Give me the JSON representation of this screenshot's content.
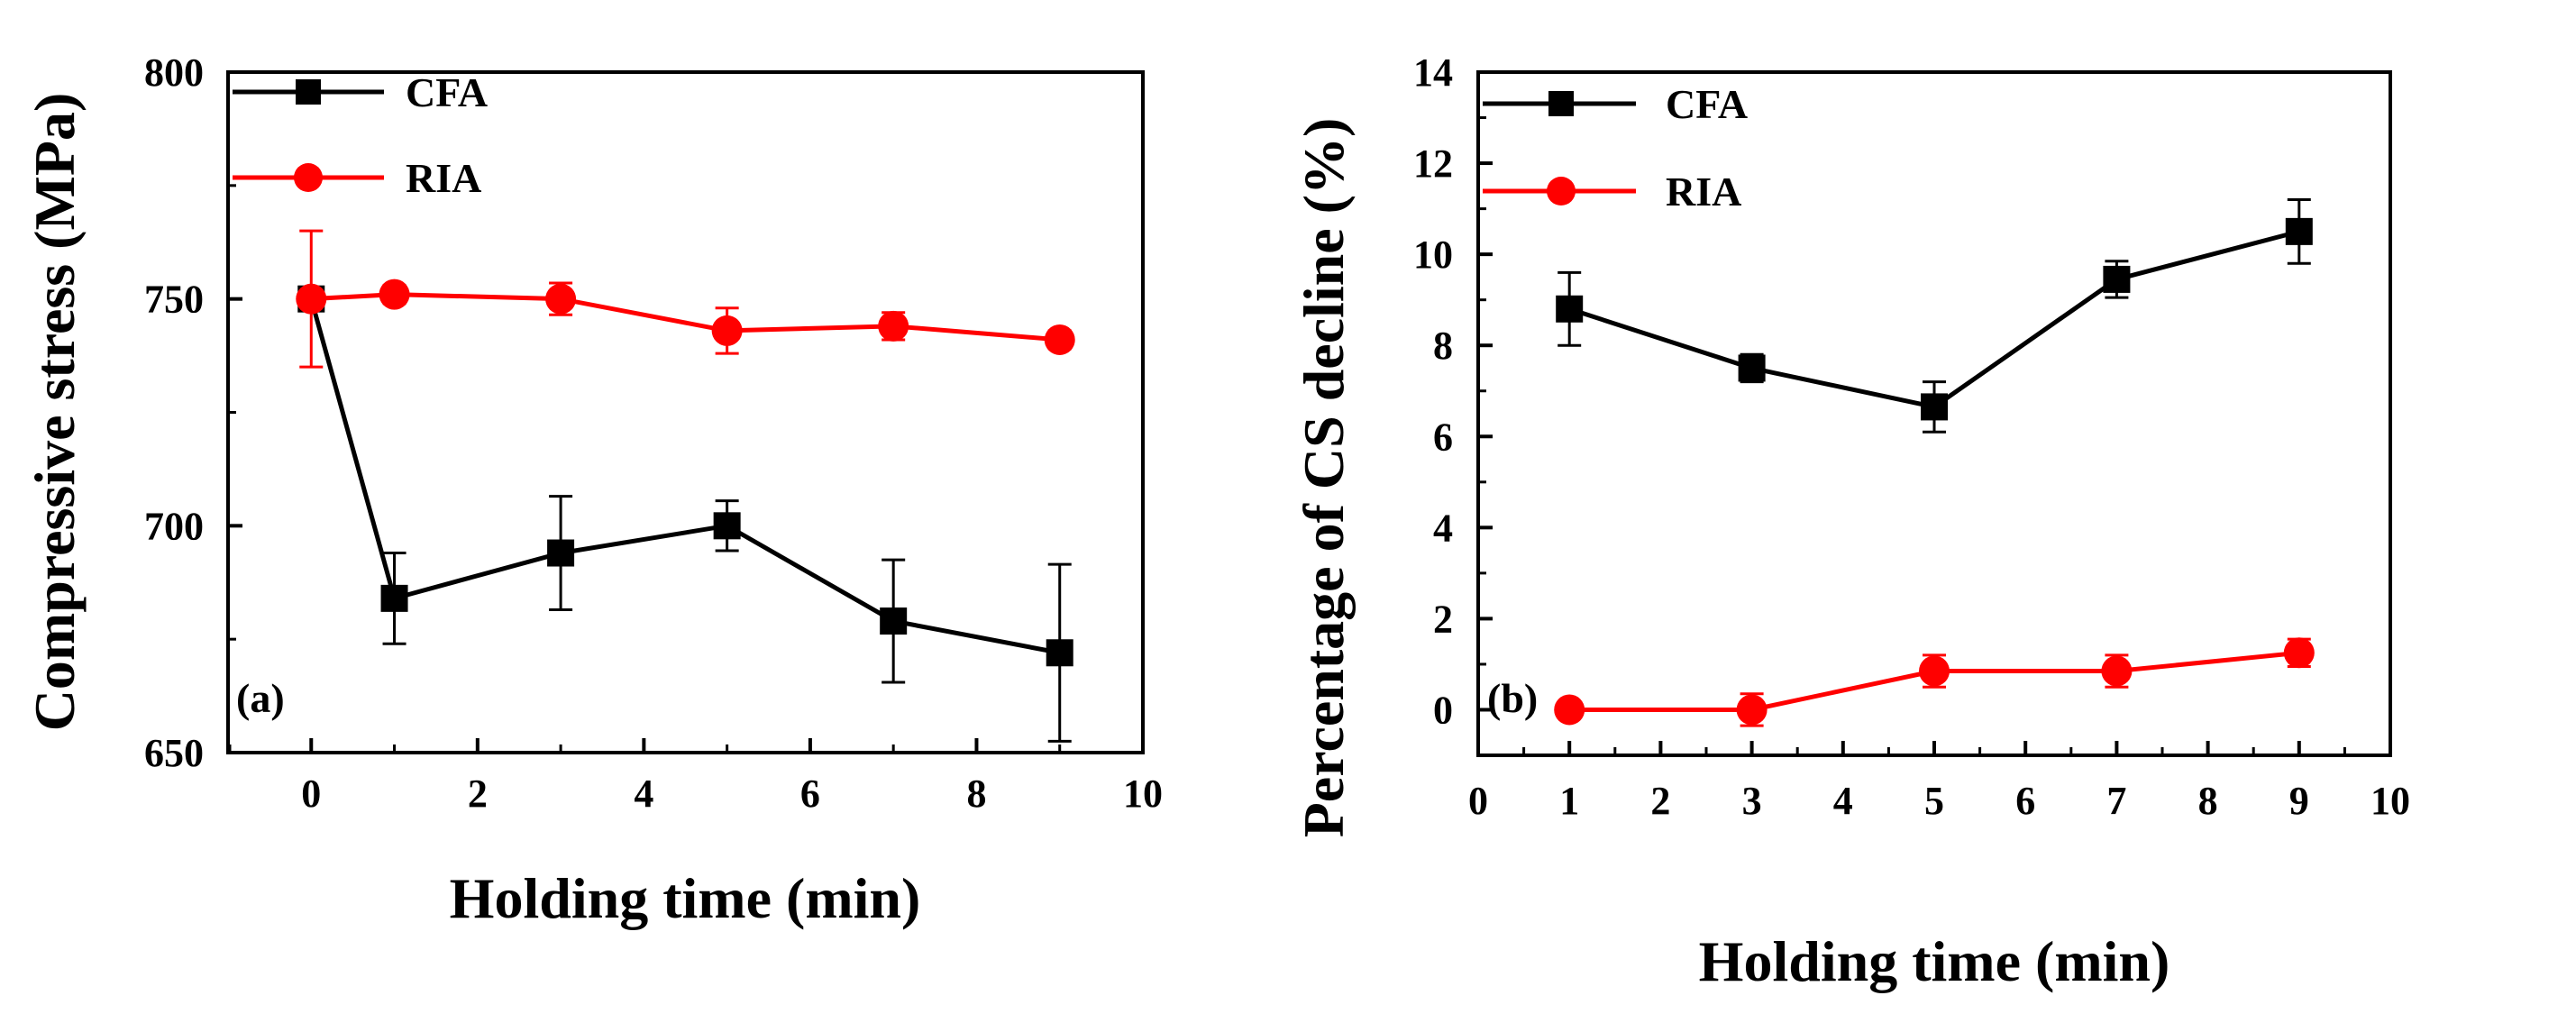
{
  "chart_data": [
    {
      "type": "line",
      "panel_label": "(a)",
      "xlabel": "Holding time (min)",
      "ylabel": "Compressive stress (MPa)",
      "xlim": [
        -1,
        10
      ],
      "ylim": [
        650,
        800
      ],
      "xticks": [
        0,
        2,
        4,
        6,
        8,
        10
      ],
      "xtick_labels": [
        "0",
        "2",
        "4",
        "6",
        "8",
        "10"
      ],
      "yticks": [
        650,
        700,
        750,
        800
      ],
      "ytick_labels": [
        "650",
        "700",
        "750",
        "800"
      ],
      "legend_position": "top-left",
      "series": [
        {
          "name": "CFA",
          "marker": "square",
          "color": "#000000",
          "x": [
            0,
            1,
            3,
            5,
            7,
            9
          ],
          "values": [
            750,
            684,
            694,
            700,
            679,
            672
          ],
          "errors": [
            0,
            10,
            12.5,
            5.5,
            13.5,
            19.5
          ]
        },
        {
          "name": "RIA",
          "marker": "circle",
          "color": "#ff0000",
          "x": [
            0,
            1,
            3,
            5,
            7,
            9
          ],
          "values": [
            750,
            751,
            750,
            743,
            744,
            741
          ],
          "errors": [
            15,
            2,
            3.5,
            5,
            3,
            2
          ]
        }
      ]
    },
    {
      "type": "line",
      "panel_label": "(b)",
      "xlabel": "Holding time (min)",
      "ylabel": "Percentage of CS decline (%)",
      "xlim": [
        0,
        10
      ],
      "ylim": [
        -1,
        14
      ],
      "xticks": [
        0,
        1,
        2,
        3,
        4,
        5,
        6,
        7,
        8,
        9,
        10
      ],
      "xtick_labels": [
        "0",
        "1",
        "2",
        "3",
        "4",
        "5",
        "6",
        "7",
        "8",
        "9",
        "10"
      ],
      "yticks": [
        0,
        2,
        4,
        6,
        8,
        10,
        12,
        14
      ],
      "ytick_labels": [
        "0",
        "2",
        "4",
        "6",
        "8",
        "10",
        "12",
        "14"
      ],
      "legend_position": "top-left",
      "series": [
        {
          "name": "CFA",
          "marker": "square",
          "color": "#000000",
          "x": [
            1,
            3,
            5,
            7,
            9
          ],
          "values": [
            8.8,
            7.5,
            6.65,
            9.45,
            10.5
          ],
          "errors": [
            0.8,
            0.3,
            0.55,
            0.4,
            0.7
          ]
        },
        {
          "name": "RIA",
          "marker": "circle",
          "color": "#ff0000",
          "x": [
            1,
            3,
            5,
            7,
            9
          ],
          "values": [
            0,
            0,
            0.85,
            0.85,
            1.25
          ],
          "errors": [
            0.05,
            0.35,
            0.35,
            0.35,
            0.3
          ]
        }
      ]
    }
  ]
}
